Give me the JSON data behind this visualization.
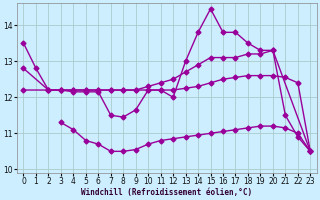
{
  "lines": [
    {
      "x": [
        0,
        1,
        2,
        3,
        4,
        5,
        6,
        7,
        8,
        9,
        10,
        11,
        12,
        13,
        14,
        15,
        16,
        17,
        18,
        19,
        20,
        21,
        22,
        23
      ],
      "y": [
        13.5,
        12.8,
        12.2,
        12.2,
        12.15,
        12.15,
        12.15,
        11.5,
        11.45,
        11.65,
        12.2,
        12.2,
        12.0,
        13.0,
        13.8,
        14.45,
        13.8,
        13.8,
        13.5,
        13.3,
        13.3,
        11.5,
        10.9,
        10.5
      ]
    },
    {
      "x": [
        0,
        2,
        3,
        4,
        5,
        6,
        7,
        8,
        9,
        10,
        11,
        12,
        13,
        14,
        15,
        16,
        17,
        18,
        19,
        20,
        23
      ],
      "y": [
        12.8,
        12.2,
        12.2,
        12.2,
        12.2,
        12.2,
        12.2,
        12.2,
        12.2,
        12.3,
        12.4,
        12.5,
        12.7,
        12.9,
        13.1,
        13.1,
        13.1,
        13.2,
        13.2,
        13.3,
        10.5
      ]
    },
    {
      "x": [
        0,
        2,
        3,
        4,
        5,
        6,
        7,
        8,
        9,
        10,
        11,
        12,
        13,
        14,
        15,
        16,
        17,
        18,
        19,
        20,
        21,
        22,
        23
      ],
      "y": [
        12.2,
        12.2,
        12.2,
        12.2,
        12.2,
        12.2,
        12.2,
        12.2,
        12.2,
        12.2,
        12.2,
        12.2,
        12.25,
        12.3,
        12.4,
        12.5,
        12.55,
        12.6,
        12.6,
        12.6,
        12.55,
        12.4,
        10.5
      ]
    },
    {
      "x": [
        3,
        4,
        5,
        6,
        7,
        8,
        9,
        10,
        11,
        12,
        13,
        14,
        15,
        16,
        17,
        18,
        19,
        20,
        21,
        22,
        23
      ],
      "y": [
        11.3,
        11.1,
        10.8,
        10.7,
        10.5,
        10.5,
        10.55,
        10.7,
        10.8,
        10.85,
        10.9,
        10.95,
        11.0,
        11.05,
        11.1,
        11.15,
        11.2,
        11.2,
        11.15,
        11.0,
        10.5
      ]
    }
  ],
  "color": "#990099",
  "bg_color": "#cceeff",
  "grid_color": "#aacccc",
  "xlabel": "Windchill (Refroidissement éolien,°C)",
  "ylim": [
    9.9,
    14.6
  ],
  "xlim": [
    -0.5,
    23.5
  ],
  "yticks": [
    10,
    11,
    12,
    13,
    14
  ],
  "xticks": [
    0,
    1,
    2,
    3,
    4,
    5,
    6,
    7,
    8,
    9,
    10,
    11,
    12,
    13,
    14,
    15,
    16,
    17,
    18,
    19,
    20,
    21,
    22,
    23
  ],
  "markersize": 2.5,
  "linewidth": 1.0
}
